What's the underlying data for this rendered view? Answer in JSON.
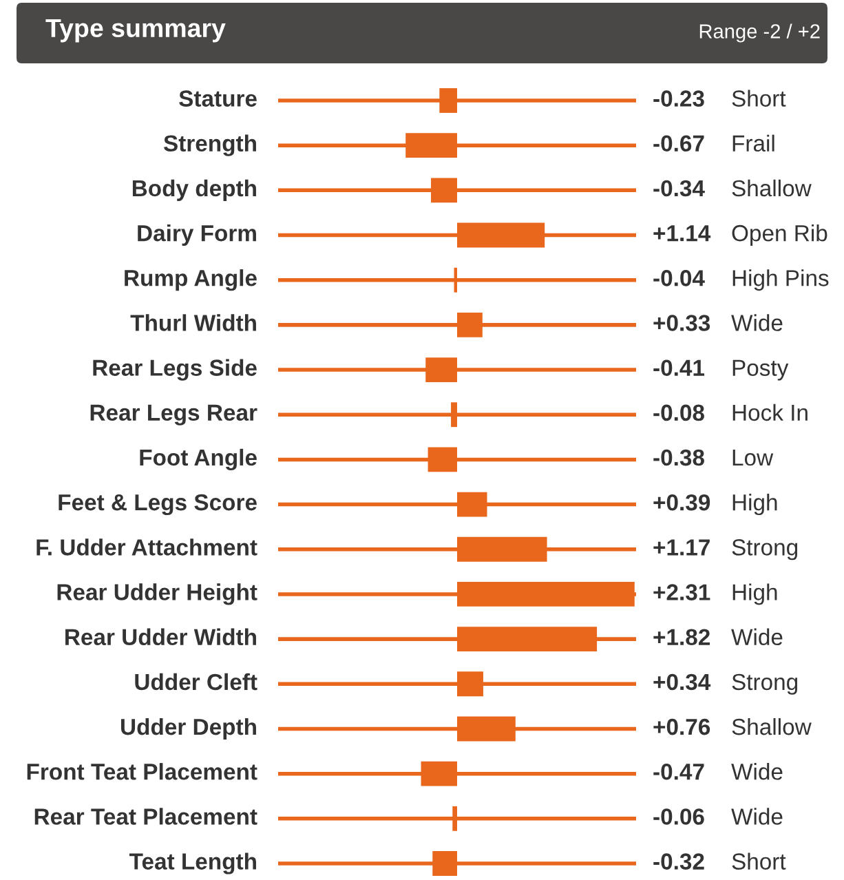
{
  "chart_data": {
    "type": "bar",
    "orientation": "horizontal",
    "title": "Type summary",
    "subtitle": "Range -2 / +2",
    "categories": [
      "Stature",
      "Strength",
      "Body depth",
      "Dairy Form",
      "Rump Angle",
      "Thurl Width",
      "Rear Legs Side",
      "Rear Legs Rear",
      "Foot Angle",
      "Feet & Legs Score",
      "F. Udder Attachment",
      "Rear Udder Height",
      "Rear Udder Width",
      "Udder Cleft",
      "Udder Depth",
      "Front Teat Placement",
      "Rear Teat Placement",
      "Teat Length"
    ],
    "values": [
      -0.23,
      -0.67,
      -0.34,
      1.14,
      -0.04,
      0.33,
      -0.41,
      -0.08,
      -0.38,
      0.39,
      1.17,
      2.31,
      1.82,
      0.34,
      0.76,
      -0.47,
      -0.06,
      -0.32
    ],
    "value_labels": [
      "-0.23",
      "-0.67",
      "-0.34",
      "+1.14",
      "-0.04",
      "+0.33",
      "-0.41",
      "-0.08",
      "-0.38",
      "+0.39",
      "+1.17",
      "+2.31",
      "+1.82",
      "+0.34",
      "+0.76",
      "-0.47",
      "-0.06",
      "-0.32"
    ],
    "color": "#e8671c",
    "xlim": [
      -2.33,
      2.33
    ],
    "annotations": [
      "Short",
      "Frail",
      "Shallow",
      "Open Rib",
      "High Pins",
      "Wide",
      "Posty",
      "Hock In",
      "Low",
      "High",
      "Strong",
      "High",
      "Wide",
      "Strong",
      "Shallow",
      "Wide",
      "Wide",
      "Short"
    ]
  }
}
